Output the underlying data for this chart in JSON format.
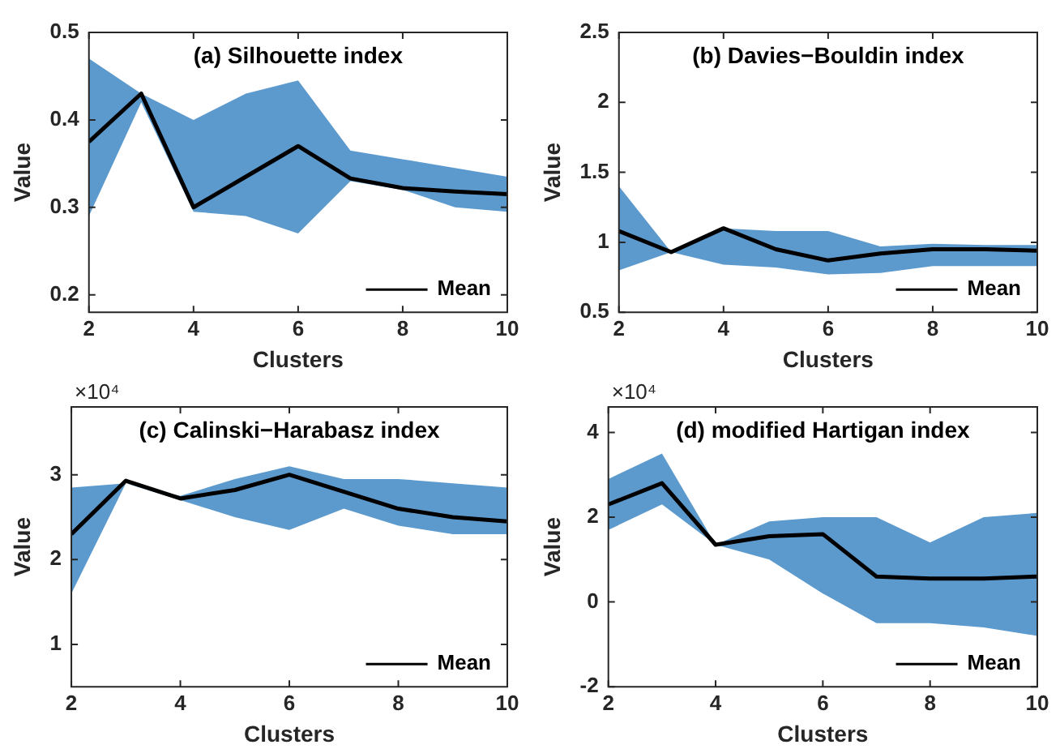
{
  "chart_data": [
    {
      "type": "line",
      "title": "(a) Silhouette index",
      "xlabel": "Clusters",
      "ylabel": "Value",
      "x": [
        2,
        3,
        4,
        5,
        6,
        7,
        8,
        9,
        10
      ],
      "xlim": [
        2,
        10
      ],
      "xticks": [
        2,
        4,
        6,
        8,
        10
      ],
      "ylim": [
        0.18,
        0.5
      ],
      "yticks": [
        0.2,
        0.3,
        0.4,
        0.5
      ],
      "legend": "bottom right",
      "grid": false,
      "series": [
        {
          "name": "Mean",
          "color": "#000000",
          "values": [
            0.375,
            0.43,
            0.3,
            0.335,
            0.37,
            0.333,
            0.322,
            0.318,
            0.315
          ],
          "lower": [
            0.29,
            0.42,
            0.295,
            0.29,
            0.27,
            0.33,
            0.32,
            0.3,
            0.295
          ],
          "upper": [
            0.47,
            0.43,
            0.4,
            0.43,
            0.445,
            0.365,
            0.355,
            0.345,
            0.335
          ]
        }
      ]
    },
    {
      "type": "line",
      "title": "(b) Davies−Bouldin index",
      "xlabel": "Clusters",
      "ylabel": "Value",
      "x": [
        2,
        3,
        4,
        5,
        6,
        7,
        8,
        9,
        10
      ],
      "xlim": [
        2,
        10
      ],
      "xticks": [
        2,
        4,
        6,
        8,
        10
      ],
      "ylim": [
        0.5,
        2.5
      ],
      "yticks": [
        {
          "value": 0.5,
          "label": "0.5"
        },
        1,
        1.5,
        2,
        2.5
      ],
      "legend": "bottom right",
      "grid": false,
      "series": [
        {
          "name": "Mean",
          "color": "#000000",
          "values": [
            1.08,
            0.93,
            1.1,
            0.95,
            0.87,
            0.92,
            0.95,
            0.95,
            0.94
          ],
          "lower": [
            0.8,
            0.93,
            0.84,
            0.82,
            0.77,
            0.78,
            0.83,
            0.83,
            0.83
          ],
          "upper": [
            1.4,
            0.93,
            1.1,
            1.08,
            1.08,
            0.97,
            0.99,
            0.98,
            0.98
          ]
        }
      ]
    },
    {
      "type": "line",
      "title": "(c) Calinski−Harabasz index",
      "xlabel": "Clusters",
      "ylabel": "Value",
      "annotations": [
        "×10⁴"
      ],
      "x": [
        2,
        3,
        4,
        5,
        6,
        7,
        8,
        9,
        10
      ],
      "xlim": [
        2,
        10
      ],
      "xticks": [
        2,
        4,
        6,
        8,
        10
      ],
      "ylim": [
        0.5,
        3.8
      ],
      "yticks": [
        1,
        2,
        3
      ],
      "legend": "bottom right",
      "grid": false,
      "series": [
        {
          "name": "Mean",
          "color": "#000000",
          "values": [
            2.3,
            2.93,
            2.72,
            2.82,
            3.0,
            2.8,
            2.6,
            2.5,
            2.45
          ],
          "lower": [
            1.6,
            2.9,
            2.7,
            2.5,
            2.35,
            2.6,
            2.4,
            2.3,
            2.3
          ],
          "upper": [
            2.85,
            2.9,
            2.75,
            2.95,
            3.1,
            2.95,
            2.95,
            2.9,
            2.85
          ]
        }
      ]
    },
    {
      "type": "line",
      "title": "(d) modified Hartigan index",
      "xlabel": "Clusters",
      "ylabel": "Value",
      "annotations": [
        "×10⁴"
      ],
      "x": [
        2,
        3,
        4,
        5,
        6,
        7,
        8,
        9,
        10
      ],
      "xlim": [
        2,
        10
      ],
      "xticks": [
        2,
        4,
        6,
        8,
        10
      ],
      "ylim": [
        -2,
        4.6
      ],
      "yticks": [
        -2,
        0,
        2,
        4
      ],
      "legend": "bottom right",
      "grid": false,
      "series": [
        {
          "name": "Mean",
          "color": "#000000",
          "values": [
            2.3,
            2.8,
            1.35,
            1.55,
            1.6,
            0.6,
            0.55,
            0.55,
            0.6
          ],
          "lower": [
            1.7,
            2.3,
            1.35,
            1.0,
            0.2,
            -0.5,
            -0.5,
            -0.6,
            -0.8
          ],
          "upper": [
            2.9,
            3.5,
            1.35,
            1.9,
            2.0,
            2.0,
            1.4,
            2.0,
            2.1
          ]
        }
      ]
    }
  ]
}
